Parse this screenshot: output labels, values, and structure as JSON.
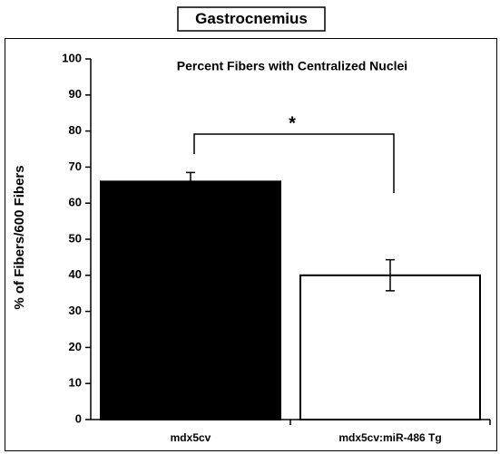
{
  "chart_data": {
    "type": "bar",
    "header": "Gastrocnemius",
    "title": "Percent Fibers with Centralized Nuclei",
    "y_label": "% of Fibers/600 Fibers",
    "categories": [
      "mdx5cv",
      "mdx5cv:miR-486 Tg"
    ],
    "values": [
      66,
      40
    ],
    "errors": [
      2.5,
      4.3
    ],
    "colors": [
      "#000000",
      "#ffffff"
    ],
    "annotation": "*",
    "ylim": [
      0,
      100
    ],
    "yticks": [
      0,
      10,
      20,
      30,
      40,
      50,
      60,
      70,
      80,
      90,
      100
    ],
    "grid": false
  }
}
